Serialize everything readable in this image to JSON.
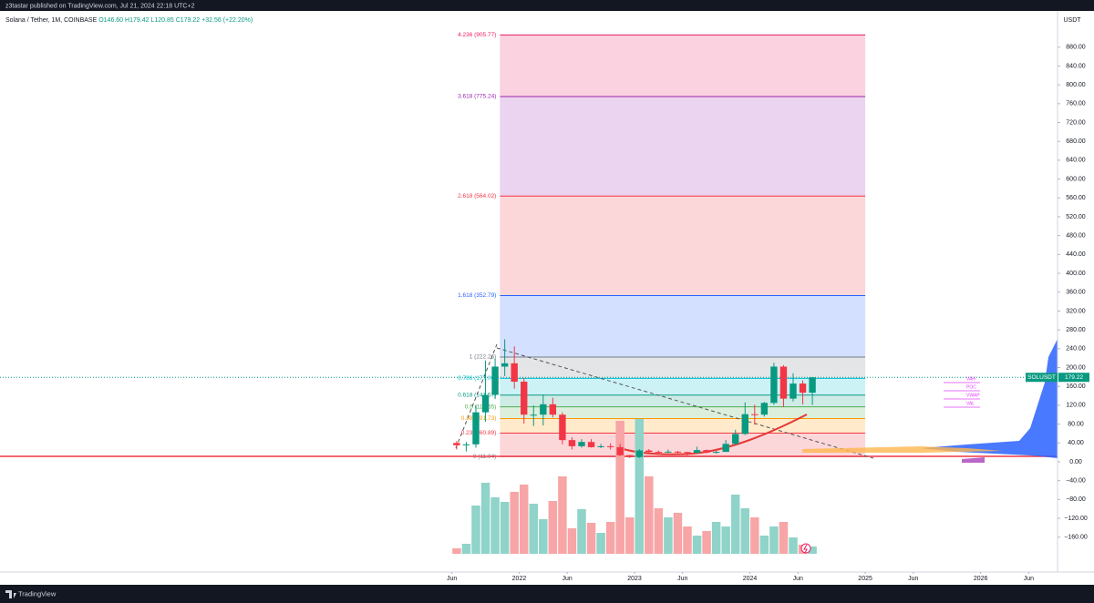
{
  "header": {
    "publisher": "z3tastar published on TradingView.com, Jul 21, 2024 22:18 UTC+2",
    "brand": "TradingView"
  },
  "chart_data": {
    "type": "candlestick",
    "title": "Solana / Tether, 1M, COINBASE",
    "ohlc_legend": [
      "O146.60",
      "H179.42",
      "L120.85",
      "C179.22"
    ],
    "change": "+32.56 (+22.20%)",
    "y_unit": "USDT",
    "x": [
      "2021-06",
      "2021-07",
      "2021-08",
      "2021-09",
      "2021-10",
      "2021-11",
      "2021-12",
      "2022-01",
      "2022-02",
      "2022-03",
      "2022-04",
      "2022-05",
      "2022-06",
      "2022-07",
      "2022-08",
      "2022-09",
      "2022-10",
      "2022-11",
      "2022-12",
      "2023-01",
      "2023-02",
      "2023-03",
      "2023-04",
      "2023-05",
      "2023-06",
      "2023-07",
      "2023-08",
      "2023-09",
      "2023-10",
      "2023-11",
      "2023-12",
      "2024-01",
      "2024-02",
      "2024-03",
      "2024-04",
      "2024-05",
      "2024-06",
      "2024-07"
    ],
    "open": [
      40,
      35,
      37,
      105,
      142,
      202,
      209,
      170,
      100,
      100,
      122,
      100,
      46,
      33,
      42,
      31,
      33,
      31,
      14,
      10,
      24,
      21,
      20.5,
      21.5,
      20.7,
      19,
      24.8,
      19.5,
      21,
      38,
      59,
      101,
      100,
      125,
      202,
      134,
      166,
      146.6
    ],
    "high": [
      44,
      42,
      120,
      215,
      219,
      260,
      245,
      178,
      120,
      143,
      136,
      105,
      52,
      48,
      48,
      38,
      39,
      38,
      14.5,
      27,
      27,
      24,
      26,
      23,
      21,
      32,
      26,
      23,
      46,
      68,
      126,
      121,
      127,
      210,
      205,
      188,
      173,
      179.42
    ],
    "low": [
      26,
      22,
      30,
      85,
      133,
      182,
      155,
      81,
      76,
      77,
      94,
      37,
      26,
      30,
      30,
      29,
      26,
      12,
      8,
      8,
      19,
      16,
      19,
      18,
      13,
      18,
      18,
      17,
      21,
      37,
      57,
      79,
      96,
      121,
      116,
      128,
      122,
      120.85
    ],
    "close": [
      35,
      37,
      105,
      142,
      202,
      209,
      170,
      100,
      100,
      122,
      100,
      46,
      33,
      42,
      31,
      33,
      31,
      14,
      10,
      24,
      21,
      20.5,
      21.5,
      20.7,
      19,
      24.8,
      19.5,
      21,
      38,
      59,
      101,
      100,
      125,
      202,
      134,
      166,
      146.6,
      179.22
    ],
    "volume": [
      6,
      11,
      53,
      78,
      62,
      57,
      68,
      76,
      55,
      38,
      58,
      85,
      28,
      49,
      34,
      23,
      35,
      146,
      40,
      148,
      85,
      50,
      40,
      45,
      30,
      20,
      25,
      35,
      30,
      65,
      50,
      40,
      20,
      30,
      35,
      18,
      10,
      8
    ],
    "up_color": "#089981",
    "down_color": "#f23645",
    "xlim": [
      "2017-07",
      "2026-09"
    ],
    "xticks": [
      {
        "value": "2021-06",
        "label": "Jun"
      },
      {
        "value": "2022-01",
        "label": "2022"
      },
      {
        "value": "2022-06",
        "label": "Jun"
      },
      {
        "value": "2023-01",
        "label": "2023"
      },
      {
        "value": "2023-06",
        "label": "Jun"
      },
      {
        "value": "2024-01",
        "label": "2024"
      },
      {
        "value": "2024-06",
        "label": "Jun"
      },
      {
        "value": "2025-01",
        "label": "2025"
      },
      {
        "value": "2025-06",
        "label": "Jun"
      },
      {
        "value": "2026-01",
        "label": "2026"
      },
      {
        "value": "2026-06",
        "label": "Jun"
      }
    ],
    "ylim": [
      -234,
      953
    ],
    "yticks": [
      {
        "value": -160,
        "label": "−160.00"
      },
      {
        "value": -120,
        "label": "−120.00"
      },
      {
        "value": -80,
        "label": "−80.00"
      },
      {
        "value": -40,
        "label": "−40.00"
      },
      {
        "value": 0,
        "label": "0.00"
      },
      {
        "value": 40,
        "label": "40.00"
      },
      {
        "value": 80,
        "label": "80.00"
      },
      {
        "value": 120,
        "label": "120.00"
      },
      {
        "value": 160,
        "label": "160.00"
      },
      {
        "value": 200,
        "label": "200.00"
      },
      {
        "value": 240,
        "label": "240.00"
      },
      {
        "value": 280,
        "label": "280.00"
      },
      {
        "value": 320,
        "label": "320.00"
      },
      {
        "value": 360,
        "label": "360.00"
      },
      {
        "value": 400,
        "label": "400.00"
      },
      {
        "value": 440,
        "label": "440.00"
      },
      {
        "value": 480,
        "label": "480.00"
      },
      {
        "value": 520,
        "label": "520.00"
      },
      {
        "value": 560,
        "label": "560.00"
      },
      {
        "value": 600,
        "label": "600.00"
      },
      {
        "value": 640,
        "label": "640.00"
      },
      {
        "value": 680,
        "label": "680.00"
      },
      {
        "value": 720,
        "label": "720.00"
      },
      {
        "value": 760,
        "label": "760.00"
      },
      {
        "value": 800,
        "label": "800.00"
      },
      {
        "value": 840,
        "label": "840.00"
      },
      {
        "value": 880,
        "label": "880.00"
      }
    ],
    "fib_levels": [
      {
        "label": "0 (11.04)",
        "value": 11.04,
        "color": "#787b86"
      },
      {
        "label": "0.236 (60.89)",
        "value": 60.89,
        "color": "#f23645"
      },
      {
        "label": "0.382 (91.73)",
        "value": 91.73,
        "color": "#ff9800"
      },
      {
        "label": "0.5 (116.65)",
        "value": 116.65,
        "color": "#4caf50"
      },
      {
        "label": "0.618 (141.57)",
        "value": 141.57,
        "color": "#089981"
      },
      {
        "label": "0.786 (177.06)",
        "value": 177.06,
        "color": "#00bcd4"
      },
      {
        "label": "1 (222.26)",
        "value": 222.26,
        "color": "#787b86"
      },
      {
        "label": "1.618 (352.79)",
        "value": 352.79,
        "color": "#2962ff"
      },
      {
        "label": "2.618 (564.02)",
        "value": 564.02,
        "color": "#f23645"
      },
      {
        "label": "3.618 (775.24)",
        "value": 775.24,
        "color": "#9c27b0"
      },
      {
        "label": "4.236 (905.77)",
        "value": 905.77,
        "color": "#e91e63"
      }
    ],
    "fib_start": "2021-11",
    "fib_end": "2025-01",
    "last_price": 179.22,
    "price_tag": "SOLUSDT",
    "profile_labels": [
      "VAH",
      "POC",
      "VWAP",
      "VAL"
    ]
  }
}
